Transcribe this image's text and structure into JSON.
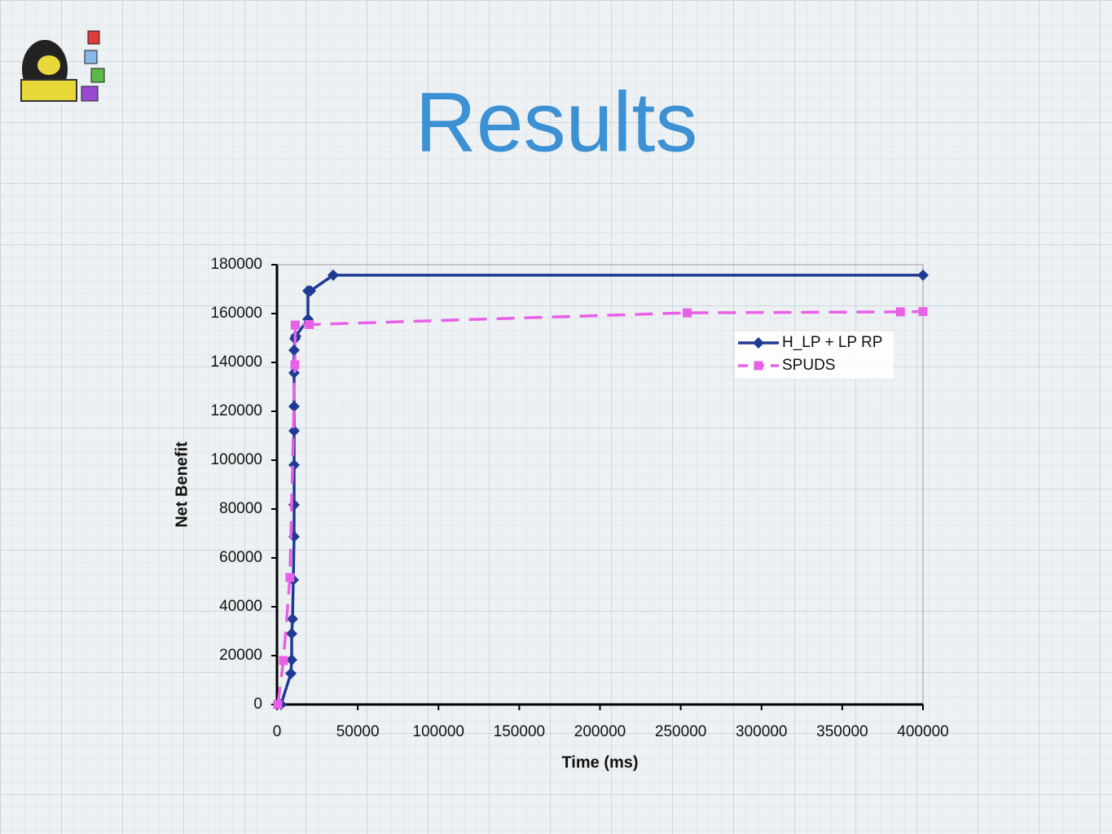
{
  "title": "Results",
  "chart_data": {
    "type": "line",
    "xlabel": "Time (ms)",
    "ylabel": "Net Benefit",
    "xlim": [
      0,
      400000
    ],
    "ylim": [
      0,
      180000
    ],
    "xticks": [
      0,
      50000,
      100000,
      150000,
      200000,
      250000,
      300000,
      350000,
      400000
    ],
    "yticks": [
      0,
      20000,
      40000,
      60000,
      80000,
      100000,
      120000,
      140000,
      160000,
      180000
    ],
    "legend": "upper right",
    "series": [
      {
        "name": "H_LP + LP RP",
        "color": "#1f3a93",
        "marker": "diamond",
        "dash": false,
        "x": [
          2500,
          8600,
          9100,
          9100,
          9600,
          10100,
          10600,
          10600,
          10600,
          10600,
          10600,
          10600,
          10600,
          11100,
          11600,
          19200,
          19200,
          20700,
          34800,
          400000
        ],
        "values": [
          0,
          12700,
          18300,
          29000,
          35000,
          51000,
          68700,
          81700,
          98000,
          112000,
          122000,
          135700,
          145000,
          149700,
          150700,
          157700,
          169300,
          169300,
          175700,
          175700
        ]
      },
      {
        "name": "SPUDS",
        "color": "#e860e8",
        "marker": "square",
        "dash": true,
        "x": [
          500,
          4000,
          8000,
          11100,
          11300,
          20000,
          254000,
          386000,
          400000
        ],
        "values": [
          0,
          18000,
          52000,
          139000,
          155300,
          155500,
          160300,
          160700,
          160800
        ]
      }
    ]
  }
}
